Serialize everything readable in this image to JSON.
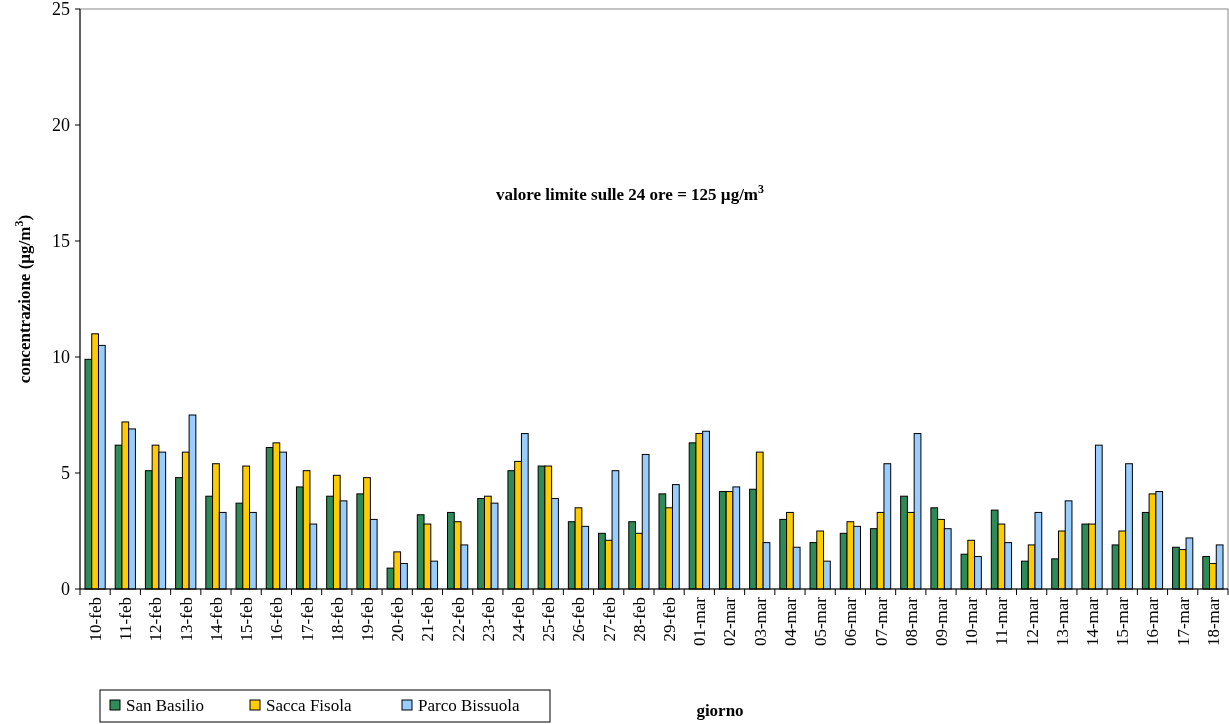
{
  "chart_data": {
    "type": "bar",
    "xlabel": "giorno",
    "ylabel": "concentrazione (µg/m$^{3}$)",
    "annotations": [
      "valore limite sulle 24 ore = 125 µg/m$^{3}$"
    ],
    "categories": [
      "10-feb",
      "11-feb",
      "12-feb",
      "13-feb",
      "14-feb",
      "15-feb",
      "16-feb",
      "17-feb",
      "18-feb",
      "19-feb",
      "20-feb",
      "21-feb",
      "22-feb",
      "23-feb",
      "24-feb",
      "25-feb",
      "26-feb",
      "27-feb",
      "28-feb",
      "29-feb",
      "01-mar",
      "02-mar",
      "03-mar",
      "04-mar",
      "05-mar",
      "06-mar",
      "07-mar",
      "08-mar",
      "09-mar",
      "10-mar",
      "11-mar",
      "12-mar",
      "13-mar",
      "14-mar",
      "15-mar",
      "16-mar",
      "17-mar",
      "18-mar"
    ],
    "series": [
      {
        "name": "San Basilio",
        "color": "#2e8b57",
        "values": [
          9.9,
          6.2,
          5.1,
          4.8,
          4.0,
          3.7,
          6.1,
          4.4,
          4.0,
          4.1,
          0.9,
          3.2,
          3.3,
          3.9,
          5.1,
          5.3,
          2.9,
          2.4,
          2.9,
          4.1,
          6.3,
          4.2,
          4.3,
          3.0,
          2.0,
          2.4,
          2.6,
          4.0,
          3.5,
          1.5,
          3.4,
          1.2,
          1.3,
          2.8,
          1.9,
          3.3,
          1.8,
          1.4
        ]
      },
      {
        "name": "Sacca Fisola",
        "color": "#ffcc00",
        "values": [
          11.0,
          7.2,
          6.2,
          5.9,
          5.4,
          5.3,
          6.3,
          5.1,
          4.9,
          4.8,
          1.6,
          2.8,
          2.9,
          4.0,
          5.5,
          5.3,
          3.5,
          2.1,
          2.4,
          3.5,
          6.7,
          4.2,
          5.9,
          3.3,
          2.5,
          2.9,
          3.3,
          3.3,
          3.0,
          2.1,
          2.8,
          1.9,
          2.5,
          2.8,
          2.5,
          4.1,
          1.7,
          1.1
        ]
      },
      {
        "name": "Parco Bissuola",
        "color": "#99ccff",
        "values": [
          10.5,
          6.9,
          5.9,
          7.5,
          3.3,
          3.3,
          5.9,
          2.8,
          3.8,
          3.0,
          1.1,
          1.2,
          1.9,
          3.7,
          6.7,
          3.9,
          2.7,
          5.1,
          5.8,
          4.5,
          6.8,
          4.4,
          2.0,
          1.8,
          1.2,
          2.7,
          5.4,
          6.7,
          2.6,
          1.4,
          2.0,
          3.3,
          3.8,
          6.2,
          5.4,
          4.2,
          2.2,
          1.9
        ]
      }
    ],
    "ylim": [
      0,
      25
    ],
    "yticks": [
      0,
      5,
      10,
      15,
      20,
      25
    ],
    "legend": "bottom left"
  }
}
